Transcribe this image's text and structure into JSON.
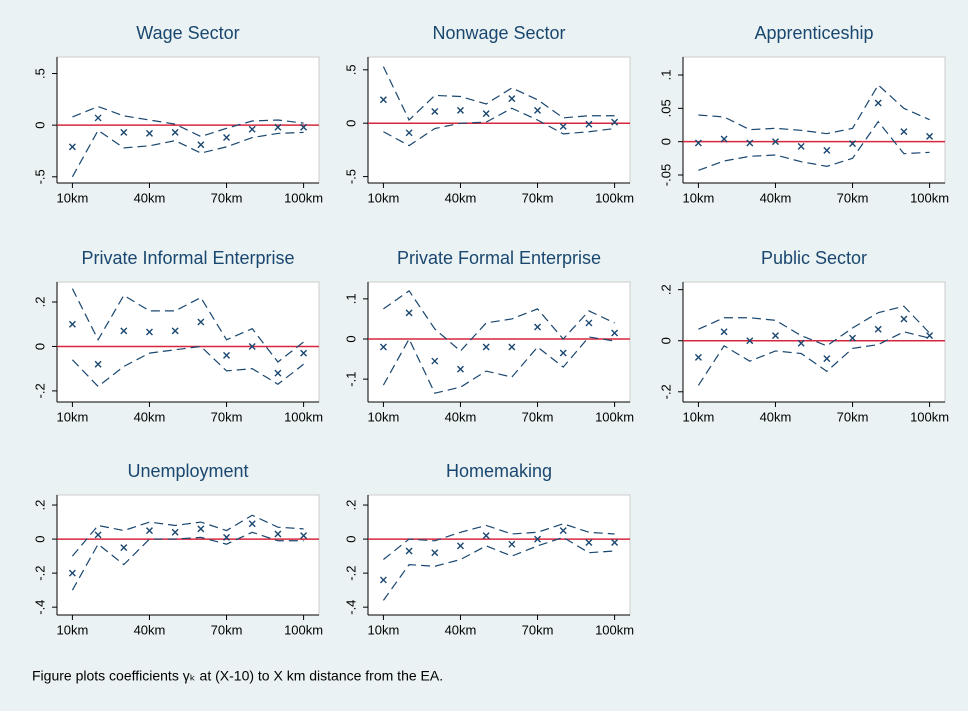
{
  "chart_data": [
    {
      "type": "line",
      "title": "Wage Sector",
      "x": [
        10,
        20,
        30,
        40,
        50,
        60,
        70,
        80,
        90,
        100
      ],
      "xlim": [
        4,
        106
      ],
      "xticks": [
        {
          "value": 10,
          "label": "10km"
        },
        {
          "value": 40,
          "label": "40km"
        },
        {
          "value": 70,
          "label": "70km"
        },
        {
          "value": 100,
          "label": "100km"
        }
      ],
      "ylim": [
        -0.56,
        0.66
      ],
      "yticks": [
        {
          "value": -0.5,
          "label": "-.5"
        },
        0,
        {
          "value": 0.5,
          "label": ".5"
        }
      ],
      "reference_line": {
        "value": 0,
        "color": "#d7263d"
      },
      "series": [
        {
          "style": "marker",
          "color": "#1a476f",
          "values": [
            -0.21,
            0.07,
            -0.07,
            -0.08,
            -0.07,
            -0.19,
            -0.12,
            -0.04,
            -0.02,
            -0.02
          ]
        },
        {
          "style": "dashed",
          "color": "#1a476f",
          "values": [
            0.08,
            0.18,
            0.09,
            0.05,
            0.01,
            -0.11,
            -0.03,
            0.04,
            0.05,
            0.02
          ]
        },
        {
          "style": "dashed",
          "color": "#1a476f",
          "values": [
            -0.5,
            -0.05,
            -0.22,
            -0.2,
            -0.15,
            -0.27,
            -0.21,
            -0.12,
            -0.08,
            -0.07
          ]
        }
      ]
    },
    {
      "type": "line",
      "title": "Nonwage Sector",
      "x": [
        10,
        20,
        30,
        40,
        50,
        60,
        70,
        80,
        90,
        100
      ],
      "xlim": [
        4,
        106
      ],
      "xticks": [
        {
          "value": 10,
          "label": "10km"
        },
        {
          "value": 40,
          "label": "40km"
        },
        {
          "value": 70,
          "label": "70km"
        },
        {
          "value": 100,
          "label": "100km"
        }
      ],
      "ylim": [
        -0.56,
        0.62
      ],
      "yticks": [
        {
          "value": -0.5,
          "label": "-.5"
        },
        0,
        {
          "value": 0.5,
          "label": ".5"
        }
      ],
      "reference_line": {
        "value": 0,
        "color": "#d7263d"
      },
      "series": [
        {
          "style": "marker",
          "color": "#1a476f",
          "values": [
            0.22,
            -0.09,
            0.11,
            0.12,
            0.09,
            0.23,
            0.12,
            -0.03,
            -0.01,
            0.01
          ]
        },
        {
          "style": "dashed",
          "color": "#1a476f",
          "values": [
            0.53,
            0.03,
            0.26,
            0.25,
            0.18,
            0.33,
            0.22,
            0.05,
            0.07,
            0.07
          ]
        },
        {
          "style": "dashed",
          "color": "#1a476f",
          "values": [
            -0.08,
            -0.21,
            -0.05,
            0.0,
            0.01,
            0.14,
            0.03,
            -0.1,
            -0.08,
            -0.05
          ]
        }
      ]
    },
    {
      "type": "line",
      "title": "Apprenticeship",
      "x": [
        10,
        20,
        30,
        40,
        50,
        60,
        70,
        80,
        90,
        100
      ],
      "xlim": [
        4,
        106
      ],
      "xticks": [
        {
          "value": 10,
          "label": "10km"
        },
        {
          "value": 40,
          "label": "40km"
        },
        {
          "value": 70,
          "label": "70km"
        },
        {
          "value": 100,
          "label": "100km"
        }
      ],
      "ylim": [
        -0.062,
        0.127
      ],
      "yticks": [
        {
          "value": -0.05,
          "label": "-.05"
        },
        0,
        {
          "value": 0.05,
          "label": ".05"
        },
        {
          "value": 0.1,
          "label": ".1"
        }
      ],
      "reference_line": {
        "value": 0,
        "color": "#d7263d"
      },
      "series": [
        {
          "style": "marker",
          "color": "#1a476f",
          "values": [
            -0.002,
            0.004,
            -0.002,
            0.0,
            -0.007,
            -0.013,
            -0.003,
            0.058,
            0.015,
            0.008
          ]
        },
        {
          "style": "dashed",
          "color": "#1a476f",
          "values": [
            0.04,
            0.037,
            0.018,
            0.02,
            0.017,
            0.012,
            0.02,
            0.085,
            0.05,
            0.033
          ]
        },
        {
          "style": "dashed",
          "color": "#1a476f",
          "values": [
            -0.043,
            -0.029,
            -0.022,
            -0.02,
            -0.03,
            -0.037,
            -0.025,
            0.03,
            -0.018,
            -0.016
          ]
        }
      ]
    },
    {
      "type": "line",
      "title": "Private Informal Enterprise",
      "x": [
        10,
        20,
        30,
        40,
        50,
        60,
        70,
        80,
        90,
        100
      ],
      "xlim": [
        4,
        106
      ],
      "xticks": [
        {
          "value": 10,
          "label": "10km"
        },
        {
          "value": 40,
          "label": "40km"
        },
        {
          "value": 70,
          "label": "70km"
        },
        {
          "value": 100,
          "label": "100km"
        }
      ],
      "ylim": [
        -0.25,
        0.29
      ],
      "yticks": [
        {
          "value": -0.2,
          "label": "-.2"
        },
        0,
        {
          "value": 0.2,
          "label": ".2"
        }
      ],
      "reference_line": {
        "value": 0,
        "color": "#d7263d"
      },
      "series": [
        {
          "style": "marker",
          "color": "#1a476f",
          "values": [
            0.1,
            -0.08,
            0.07,
            0.065,
            0.07,
            0.11,
            -0.04,
            0.0,
            -0.12,
            -0.03
          ]
        },
        {
          "style": "dashed",
          "color": "#1a476f",
          "values": [
            0.26,
            0.03,
            0.23,
            0.16,
            0.16,
            0.22,
            0.03,
            0.08,
            -0.07,
            0.02
          ]
        },
        {
          "style": "dashed",
          "color": "#1a476f",
          "values": [
            -0.06,
            -0.18,
            -0.09,
            -0.03,
            -0.015,
            0.0,
            -0.11,
            -0.1,
            -0.17,
            -0.08
          ]
        }
      ]
    },
    {
      "type": "line",
      "title": "Private Formal Enterprise",
      "x": [
        10,
        20,
        30,
        40,
        50,
        60,
        70,
        80,
        90,
        100
      ],
      "xlim": [
        4,
        106
      ],
      "xticks": [
        {
          "value": 10,
          "label": "10km"
        },
        {
          "value": 40,
          "label": "40km"
        },
        {
          "value": 70,
          "label": "70km"
        },
        {
          "value": 100,
          "label": "100km"
        }
      ],
      "ylim": [
        -0.157,
        0.142
      ],
      "yticks": [
        {
          "value": -0.1,
          "label": "-.1"
        },
        0,
        {
          "value": 0.1,
          "label": ".1"
        }
      ],
      "reference_line": {
        "value": 0,
        "color": "#d7263d"
      },
      "series": [
        {
          "style": "marker",
          "color": "#1a476f",
          "values": [
            -0.02,
            0.065,
            -0.055,
            -0.075,
            -0.02,
            -0.02,
            0.03,
            -0.035,
            0.04,
            0.015
          ]
        },
        {
          "style": "dashed",
          "color": "#1a476f",
          "values": [
            0.075,
            0.12,
            0.025,
            -0.03,
            0.04,
            0.05,
            0.075,
            0.0,
            0.07,
            0.04
          ]
        },
        {
          "style": "dashed",
          "color": "#1a476f",
          "values": [
            -0.115,
            0.0,
            -0.135,
            -0.12,
            -0.08,
            -0.095,
            -0.02,
            -0.07,
            0.005,
            -0.005
          ]
        }
      ]
    },
    {
      "type": "line",
      "title": "Public Sector",
      "x": [
        10,
        20,
        30,
        40,
        50,
        60,
        70,
        80,
        90,
        100
      ],
      "xlim": [
        4,
        106
      ],
      "xticks": [
        {
          "value": 10,
          "label": "10km"
        },
        {
          "value": 40,
          "label": "40km"
        },
        {
          "value": 70,
          "label": "70km"
        },
        {
          "value": 100,
          "label": "100km"
        }
      ],
      "ylim": [
        -0.24,
        0.23
      ],
      "yticks": [
        {
          "value": -0.2,
          "label": "-.2"
        },
        0,
        {
          "value": 0.2,
          "label": ".2"
        }
      ],
      "reference_line": {
        "value": 0,
        "color": "#d7263d"
      },
      "series": [
        {
          "style": "marker",
          "color": "#1a476f",
          "values": [
            -0.065,
            0.035,
            0.0,
            0.02,
            -0.01,
            -0.07,
            0.01,
            0.045,
            0.085,
            0.02
          ]
        },
        {
          "style": "dashed",
          "color": "#1a476f",
          "values": [
            0.045,
            0.09,
            0.09,
            0.08,
            0.02,
            -0.02,
            0.05,
            0.11,
            0.135,
            0.03
          ]
        },
        {
          "style": "dashed",
          "color": "#1a476f",
          "values": [
            -0.175,
            -0.02,
            -0.08,
            -0.04,
            -0.05,
            -0.12,
            -0.03,
            -0.015,
            0.035,
            0.01
          ]
        }
      ]
    },
    {
      "type": "line",
      "title": "Unemployment",
      "x": [
        10,
        20,
        30,
        40,
        50,
        60,
        70,
        80,
        90,
        100
      ],
      "xlim": [
        4,
        106
      ],
      "xticks": [
        {
          "value": 10,
          "label": "10km"
        },
        {
          "value": 40,
          "label": "40km"
        },
        {
          "value": 70,
          "label": "70km"
        },
        {
          "value": 100,
          "label": "100km"
        }
      ],
      "ylim": [
        -0.446,
        0.259
      ],
      "yticks": [
        {
          "value": -0.4,
          "label": "-.4"
        },
        {
          "value": -0.2,
          "label": "-.2"
        },
        0,
        {
          "value": 0.2,
          "label": ".2"
        }
      ],
      "reference_line": {
        "value": 0,
        "color": "#d7263d"
      },
      "series": [
        {
          "style": "marker",
          "color": "#1a476f",
          "values": [
            -0.2,
            0.025,
            -0.05,
            0.05,
            0.04,
            0.06,
            0.01,
            0.09,
            0.03,
            0.02
          ]
        },
        {
          "style": "dashed",
          "color": "#1a476f",
          "values": [
            -0.1,
            0.08,
            0.05,
            0.1,
            0.08,
            0.1,
            0.05,
            0.14,
            0.07,
            0.06
          ]
        },
        {
          "style": "dashed",
          "color": "#1a476f",
          "values": [
            -0.3,
            -0.03,
            -0.15,
            0.0,
            0.0,
            0.01,
            -0.03,
            0.04,
            -0.01,
            -0.01
          ]
        }
      ]
    },
    {
      "type": "line",
      "title": "Homemaking",
      "x": [
        10,
        20,
        30,
        40,
        50,
        60,
        70,
        80,
        90,
        100
      ],
      "xlim": [
        4,
        106
      ],
      "xticks": [
        {
          "value": 10,
          "label": "10km"
        },
        {
          "value": 40,
          "label": "40km"
        },
        {
          "value": 70,
          "label": "70km"
        },
        {
          "value": 100,
          "label": "100km"
        }
      ],
      "ylim": [
        -0.446,
        0.259
      ],
      "yticks": [
        {
          "value": -0.4,
          "label": "-.4"
        },
        {
          "value": -0.2,
          "label": "-.2"
        },
        0,
        {
          "value": 0.2,
          "label": ".2"
        }
      ],
      "reference_line": {
        "value": 0,
        "color": "#d7263d"
      },
      "series": [
        {
          "style": "marker",
          "color": "#1a476f",
          "values": [
            -0.24,
            -0.07,
            -0.08,
            -0.04,
            0.02,
            -0.03,
            0.0,
            0.05,
            -0.02,
            -0.02
          ]
        },
        {
          "style": "dashed",
          "color": "#1a476f",
          "values": [
            -0.12,
            0.0,
            -0.01,
            0.04,
            0.08,
            0.03,
            0.04,
            0.09,
            0.04,
            0.03
          ]
        },
        {
          "style": "dashed",
          "color": "#1a476f",
          "values": [
            -0.36,
            -0.15,
            -0.16,
            -0.12,
            -0.04,
            -0.1,
            -0.04,
            0.01,
            -0.08,
            -0.07
          ]
        }
      ]
    }
  ],
  "note": "Figure plots coefficients γₖ at (X-10) to X km distance from the EA."
}
